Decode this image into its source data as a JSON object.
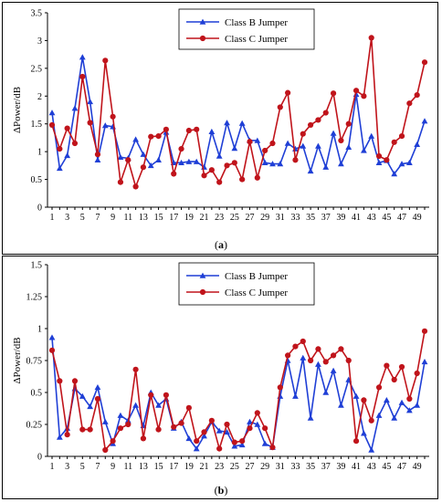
{
  "colors": {
    "class_b": "#1f3fd6",
    "class_c": "#c0141b"
  },
  "chart_data": [
    {
      "type": "line",
      "caption_letter": "a",
      "ylabel": "ΔPower/dB",
      "xlabel": "",
      "ylim": [
        0,
        3.5
      ],
      "yticks": [
        "0",
        "0.5",
        "1",
        "1.5",
        "2",
        "2.5",
        "3",
        "3.5"
      ],
      "ytick_values": [
        0,
        0.5,
        1,
        1.5,
        2,
        2.5,
        3,
        3.5
      ],
      "x": [
        1,
        2,
        3,
        4,
        5,
        6,
        7,
        8,
        9,
        10,
        11,
        12,
        13,
        14,
        15,
        16,
        17,
        18,
        19,
        20,
        21,
        22,
        23,
        24,
        25,
        26,
        27,
        28,
        29,
        30,
        31,
        32,
        33,
        34,
        35,
        36,
        37,
        38,
        39,
        40,
        41,
        42,
        43,
        44,
        45,
        46,
        47,
        48,
        49,
        50
      ],
      "xtick_labels": [
        "1",
        "3",
        "5",
        "7",
        "9",
        "11",
        "13",
        "15",
        "17",
        "19",
        "21",
        "23",
        "25",
        "27",
        "29",
        "31",
        "33",
        "35",
        "37",
        "39",
        "41",
        "43",
        "45",
        "47",
        "49"
      ],
      "grid": false,
      "legend_position": "top-center",
      "series": [
        {
          "name": "Class B Jumper",
          "marker": "triangle",
          "values": [
            1.7,
            0.7,
            0.93,
            1.78,
            2.7,
            1.9,
            0.85,
            1.47,
            1.45,
            0.9,
            0.88,
            1.22,
            0.95,
            0.75,
            0.85,
            1.35,
            0.8,
            0.8,
            0.82,
            0.82,
            0.72,
            1.36,
            0.92,
            1.52,
            1.06,
            1.51,
            1.2,
            1.2,
            0.8,
            0.78,
            0.78,
            1.15,
            1.05,
            1.1,
            0.65,
            1.1,
            0.72,
            1.33,
            0.78,
            1.08,
            2.03,
            1.02,
            1.28,
            0.8,
            0.84,
            0.6,
            0.78,
            0.8,
            1.13,
            1.55
          ]
        },
        {
          "name": "Class C Jumper",
          "marker": "circle",
          "values": [
            1.48,
            1.05,
            1.42,
            1.15,
            2.35,
            1.52,
            0.95,
            2.64,
            1.63,
            0.45,
            0.85,
            0.37,
            0.72,
            1.27,
            1.28,
            1.4,
            0.6,
            1.05,
            1.38,
            1.4,
            0.57,
            0.67,
            0.45,
            0.75,
            0.8,
            0.5,
            1.18,
            0.53,
            1.02,
            1.15,
            1.8,
            2.06,
            0.85,
            1.32,
            1.48,
            1.57,
            1.7,
            2.05,
            1.2,
            1.5,
            2.1,
            2.0,
            3.05,
            0.92,
            0.85,
            1.17,
            1.28,
            1.87,
            2.02,
            2.61
          ]
        }
      ]
    },
    {
      "type": "line",
      "caption_letter": "b",
      "ylabel": "ΔPower/dB",
      "xlabel": "",
      "ylim": [
        0,
        1.5
      ],
      "yticks": [
        "0",
        "0.25",
        "0.5",
        "0.75",
        "1",
        "1.25",
        "1.5"
      ],
      "ytick_values": [
        0,
        0.25,
        0.5,
        0.75,
        1,
        1.25,
        1.5
      ],
      "x": [
        1,
        2,
        3,
        4,
        5,
        6,
        7,
        8,
        9,
        10,
        11,
        12,
        13,
        14,
        15,
        16,
        17,
        18,
        19,
        20,
        21,
        22,
        23,
        24,
        25,
        26,
        27,
        28,
        29,
        30,
        31,
        32,
        33,
        34,
        35,
        36,
        37,
        38,
        39,
        40,
        41,
        42,
        43,
        44,
        45,
        46,
        47,
        48,
        49,
        50
      ],
      "xtick_labels": [
        "1",
        "3",
        "5",
        "7",
        "9",
        "11",
        "13",
        "15",
        "17",
        "19",
        "21",
        "23",
        "25",
        "27",
        "29",
        "31",
        "33",
        "35",
        "37",
        "39",
        "41",
        "43",
        "45",
        "47",
        "49"
      ],
      "grid": false,
      "legend_position": "top-center",
      "series": [
        {
          "name": "Class B Jumper",
          "marker": "triangle",
          "values": [
            0.93,
            0.15,
            0.22,
            0.53,
            0.47,
            0.39,
            0.54,
            0.27,
            0.1,
            0.32,
            0.28,
            0.4,
            0.24,
            0.5,
            0.4,
            0.45,
            0.22,
            0.27,
            0.14,
            0.06,
            0.16,
            0.27,
            0.2,
            0.19,
            0.08,
            0.09,
            0.27,
            0.25,
            0.1,
            0.07,
            0.47,
            0.75,
            0.47,
            0.77,
            0.3,
            0.72,
            0.5,
            0.67,
            0.4,
            0.6,
            0.47,
            0.18,
            0.05,
            0.32,
            0.44,
            0.3,
            0.42,
            0.36,
            0.4,
            0.74
          ]
        },
        {
          "name": "Class C Jumper",
          "marker": "circle",
          "values": [
            0.83,
            0.59,
            0.17,
            0.59,
            0.21,
            0.21,
            0.45,
            0.05,
            0.12,
            0.22,
            0.25,
            0.68,
            0.14,
            0.48,
            0.21,
            0.48,
            0.23,
            0.26,
            0.38,
            0.12,
            0.19,
            0.28,
            0.06,
            0.25,
            0.11,
            0.12,
            0.22,
            0.34,
            0.22,
            0.07,
            0.54,
            0.79,
            0.86,
            0.9,
            0.75,
            0.84,
            0.74,
            0.79,
            0.84,
            0.75,
            0.12,
            0.44,
            0.28,
            0.54,
            0.71,
            0.6,
            0.7,
            0.45,
            0.65,
            0.98
          ]
        }
      ]
    }
  ]
}
